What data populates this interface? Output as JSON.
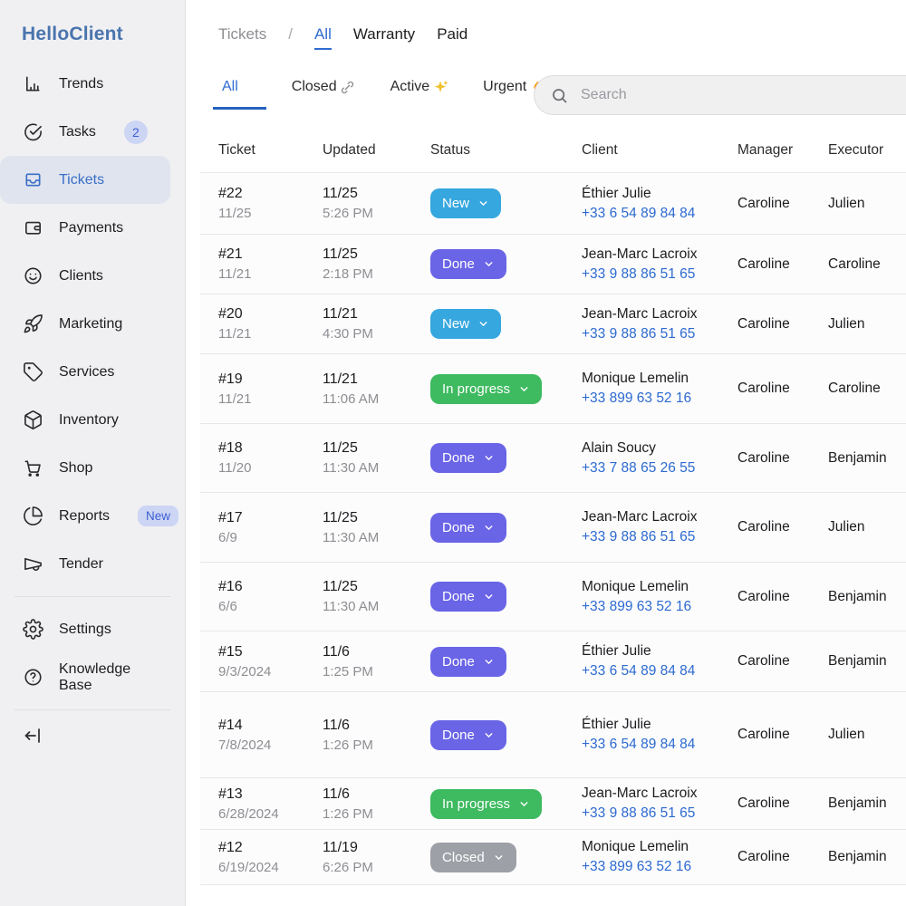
{
  "sidebar": {
    "logo": "HelloClient",
    "items": [
      {
        "label": "Trends",
        "icon": "bar-chart"
      },
      {
        "label": "Tasks",
        "icon": "check-circle",
        "badge": "2"
      },
      {
        "label": "Tickets",
        "icon": "inbox",
        "active": true
      },
      {
        "label": "Payments",
        "icon": "wallet"
      },
      {
        "label": "Clients",
        "icon": "smiley"
      },
      {
        "label": "Marketing",
        "icon": "rocket"
      },
      {
        "label": "Services",
        "icon": "tag"
      },
      {
        "label": "Inventory",
        "icon": "cube"
      },
      {
        "label": "Shop",
        "icon": "cart"
      },
      {
        "label": "Reports",
        "icon": "pie-chart",
        "badge": "New"
      },
      {
        "label": "Tender",
        "icon": "megaphone"
      }
    ],
    "footer_items": [
      {
        "label": "Settings",
        "icon": "gear"
      },
      {
        "label": "Knowledge Base",
        "icon": "question-circle"
      }
    ]
  },
  "breadcrumb": {
    "root": "Tickets",
    "separator": "/",
    "views": [
      {
        "label": "All",
        "active": true
      },
      {
        "label": "Warranty"
      },
      {
        "label": "Paid"
      }
    ]
  },
  "filters": [
    {
      "label": "All",
      "active": true
    },
    {
      "label": "Closed",
      "emoji": "🔗"
    },
    {
      "label": "Active",
      "emoji": "✨"
    },
    {
      "label": "Urgent",
      "emoji": "🔥"
    }
  ],
  "search": {
    "placeholder": "Search"
  },
  "table": {
    "columns": [
      "Ticket",
      "Updated",
      "Status",
      "Client",
      "Manager",
      "Executor"
    ],
    "rows": [
      {
        "ticket": "#22",
        "ticket_date": "11/25",
        "updated_date": "11/25",
        "updated_time": "5:26 PM",
        "status": "New",
        "status_key": "new",
        "client": "Éthier Julie",
        "phone": "+33 6 54 89 84 84",
        "manager": "Caroline",
        "executor": "Julien"
      },
      {
        "ticket": "#21",
        "ticket_date": "11/21",
        "updated_date": "11/25",
        "updated_time": "2:18 PM",
        "status": "Done",
        "status_key": "done",
        "client": "Jean-Marc Lacroix",
        "phone": "+33 9 88 86 51 65",
        "manager": "Caroline",
        "executor": "Caroline"
      },
      {
        "ticket": "#20",
        "ticket_date": "11/21",
        "updated_date": "11/21",
        "updated_time": "4:30 PM",
        "status": "New",
        "status_key": "new",
        "client": "Jean-Marc Lacroix",
        "phone": "+33 9 88 86 51 65",
        "manager": "Caroline",
        "executor": "Julien"
      },
      {
        "ticket": "#19",
        "ticket_date": "11/21",
        "updated_date": "11/21",
        "updated_time": "11:06 AM",
        "status": "In progress",
        "status_key": "in_progress",
        "client": "Monique Lemelin",
        "phone": "+33 899 63 52 16",
        "manager": "Caroline",
        "executor": "Caroline"
      },
      {
        "ticket": "#18",
        "ticket_date": "11/20",
        "updated_date": "11/25",
        "updated_time": "11:30 AM",
        "status": "Done",
        "status_key": "done",
        "client": "Alain Soucy",
        "phone": "+33 7 88 65 26 55",
        "manager": "Caroline",
        "executor": "Benjamin"
      },
      {
        "ticket": "#17",
        "ticket_date": "6/9",
        "updated_date": "11/25",
        "updated_time": "11:30 AM",
        "status": "Done",
        "status_key": "done",
        "client": "Jean-Marc Lacroix",
        "phone": "+33 9 88 86 51 65",
        "manager": "Caroline",
        "executor": "Julien"
      },
      {
        "ticket": "#16",
        "ticket_date": "6/6",
        "updated_date": "11/25",
        "updated_time": "11:30 AM",
        "status": "Done",
        "status_key": "done",
        "client": "Monique Lemelin",
        "phone": "+33 899 63 52 16",
        "manager": "Caroline",
        "executor": "Benjamin"
      },
      {
        "ticket": "#15",
        "ticket_date": "9/3/2024",
        "updated_date": "11/6",
        "updated_time": "1:25 PM",
        "status": "Done",
        "status_key": "done",
        "client": "Éthier Julie",
        "phone": "+33 6 54 89 84 84",
        "manager": "Caroline",
        "executor": "Benjamin"
      },
      {
        "ticket": "#14",
        "ticket_date": "7/8/2024",
        "updated_date": "11/6",
        "updated_time": "1:26 PM",
        "status": "Done",
        "status_key": "done",
        "client": "Éthier Julie",
        "phone": "+33 6 54 89 84 84",
        "manager": "Caroline",
        "executor": "Julien"
      },
      {
        "ticket": "#13",
        "ticket_date": "6/28/2024",
        "updated_date": "11/6",
        "updated_time": "1:26 PM",
        "status": "In progress",
        "status_key": "in_progress",
        "client": "Jean-Marc Lacroix",
        "phone": "+33 9 88 86 51 65",
        "manager": "Caroline",
        "executor": "Benjamin"
      },
      {
        "ticket": "#12",
        "ticket_date": "6/19/2024",
        "updated_date": "11/19",
        "updated_time": "6:26 PM",
        "status": "Closed",
        "status_key": "closed",
        "client": "Monique Lemelin",
        "phone": "+33 899 63 52 16",
        "manager": "Caroline",
        "executor": "Benjamin"
      }
    ]
  },
  "colors": {
    "accent": "#2e6bd0",
    "logo": "#4a74ae",
    "status_new": "#36a7df",
    "status_done": "#6a64e6",
    "status_in_progress": "#3eba60",
    "status_closed": "#9da0a6",
    "phone_link": "#2d6ad0",
    "badge_bg": "#ccd5f4",
    "badge_text": "#3c5fd3"
  }
}
